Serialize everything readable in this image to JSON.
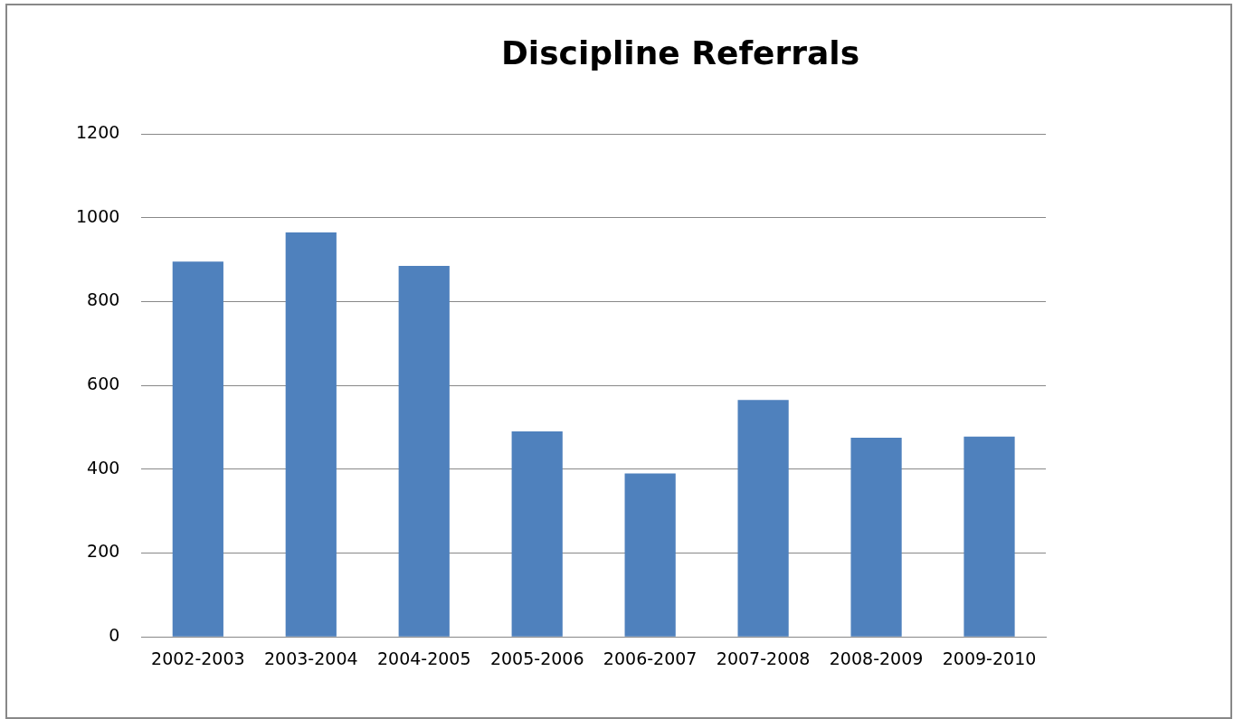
{
  "chart_data": {
    "type": "bar",
    "title": "Discipline Referrals",
    "categories": [
      "2002-2003",
      "2003-2004",
      "2004-2005",
      "2005-2006",
      "2006-2007",
      "2007-2008",
      "2008-2009",
      "2009-2010"
    ],
    "values": [
      895,
      965,
      885,
      490,
      390,
      565,
      475,
      478
    ],
    "color": "#4f81bd",
    "ylim": [
      0,
      1200
    ],
    "yticks": [
      0,
      200,
      400,
      600,
      800,
      1000,
      1200
    ],
    "grid": "y",
    "legend": false
  }
}
